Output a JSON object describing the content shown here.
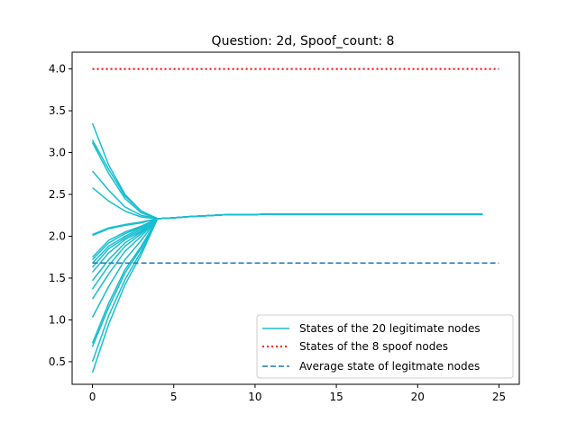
{
  "chart_data": {
    "type": "line",
    "title": "Question: 2d, Spoof_count: 8",
    "xlabel": "",
    "ylabel": "",
    "xlim": [
      -1.25,
      26.25
    ],
    "ylim": [
      0.23,
      4.2
    ],
    "x_ticks": [
      0,
      5,
      10,
      15,
      20,
      25
    ],
    "x_tick_labels": [
      "0",
      "5",
      "10",
      "15",
      "20",
      "25"
    ],
    "y_ticks": [
      0.5,
      1.0,
      1.5,
      2.0,
      2.5,
      3.0,
      3.5,
      4.0
    ],
    "y_tick_labels": [
      "0.5",
      "1.0",
      "1.5",
      "2.0",
      "2.5",
      "3.0",
      "3.5",
      "4.0"
    ],
    "grid": false,
    "legend_position": "lower-right",
    "legitimate": {
      "name": "States of the 20 legitimate nodes",
      "color": "#17becf",
      "x": [
        0,
        1,
        2,
        3,
        4,
        5,
        6,
        7,
        8,
        9,
        10,
        11,
        12,
        13,
        14,
        15,
        16,
        17,
        18,
        19,
        20,
        21,
        22,
        23,
        24,
        25
      ],
      "final": [
        2.21,
        2.22,
        2.235,
        2.245,
        2.255,
        2.26,
        2.26,
        2.265,
        2.265,
        2.265,
        2.265,
        2.265,
        2.265,
        2.265,
        2.265,
        2.265,
        2.265,
        2.265,
        2.265,
        2.265,
        2.265
      ],
      "series": [
        {
          "values": [
            3.35,
            2.85,
            2.5,
            2.3
          ]
        },
        {
          "values": [
            3.15,
            2.8,
            2.48,
            2.3
          ]
        },
        {
          "values": [
            3.12,
            2.75,
            2.45,
            2.28
          ]
        },
        {
          "values": [
            2.78,
            2.55,
            2.35,
            2.25
          ]
        },
        {
          "values": [
            2.58,
            2.42,
            2.3,
            2.23
          ]
        },
        {
          "values": [
            2.02,
            2.1,
            2.14,
            2.17
          ]
        },
        {
          "values": [
            2.01,
            2.09,
            2.13,
            2.16
          ]
        },
        {
          "values": [
            1.75,
            1.95,
            2.05,
            2.12
          ]
        },
        {
          "values": [
            1.72,
            1.92,
            2.03,
            2.11
          ]
        },
        {
          "values": [
            1.68,
            1.88,
            2.0,
            2.1
          ]
        },
        {
          "values": [
            1.63,
            1.85,
            1.98,
            2.08
          ]
        },
        {
          "values": [
            1.57,
            1.8,
            1.96,
            2.06
          ]
        },
        {
          "values": [
            1.47,
            1.72,
            1.92,
            2.05
          ]
        },
        {
          "values": [
            1.37,
            1.65,
            1.88,
            2.03
          ]
        },
        {
          "values": [
            1.25,
            1.55,
            1.82,
            2.0
          ]
        },
        {
          "values": [
            1.03,
            1.4,
            1.72,
            1.95
          ]
        },
        {
          "values": [
            0.72,
            1.2,
            1.6,
            1.88
          ]
        },
        {
          "values": [
            0.68,
            1.15,
            1.56,
            1.86
          ]
        },
        {
          "values": [
            0.5,
            1.05,
            1.48,
            1.82
          ]
        },
        {
          "values": [
            0.37,
            0.95,
            1.42,
            1.78
          ]
        }
      ]
    },
    "spoof": {
      "name": "States of the 8 spoof nodes",
      "color": "#ff0000",
      "x": [
        0,
        25
      ],
      "values": [
        4.0,
        4.0
      ]
    },
    "average": {
      "name": "Average state of legitmate nodes",
      "color": "#1f77b4",
      "x": [
        0,
        25
      ],
      "values": [
        1.68,
        1.68
      ]
    }
  }
}
